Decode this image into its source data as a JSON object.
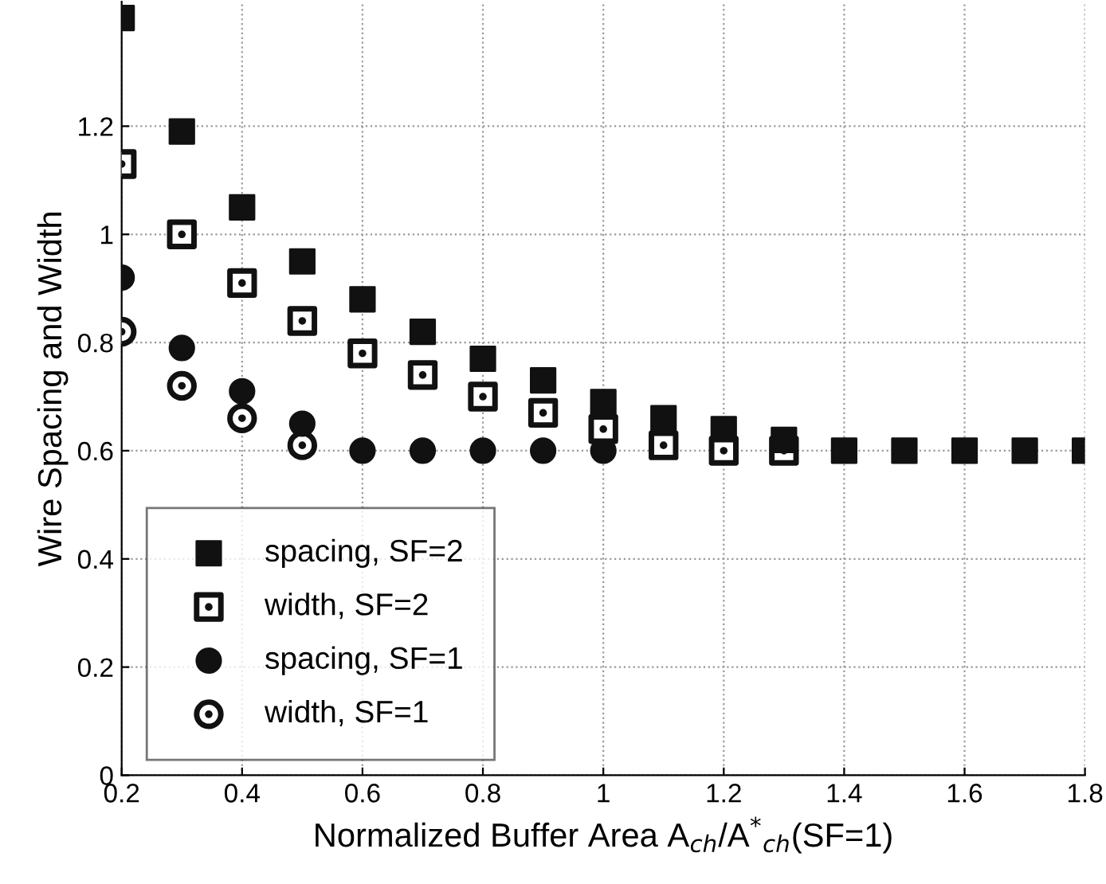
{
  "chart_data": {
    "type": "scatter",
    "xlabel": "Normalized Buffer Area A$_{ch}$/A$^{*}$$_{ch}$(SF=1)",
    "ylabel": "Wire Spacing and Width",
    "series": [
      {
        "name": "spacing, SF=2",
        "color": "#111111",
        "marker": "square",
        "x": [
          0.2,
          0.3,
          0.4,
          0.5,
          0.6,
          0.7,
          0.8,
          0.9,
          1.0,
          1.1,
          1.2,
          1.3,
          1.4,
          1.5,
          1.6,
          1.7,
          1.8
        ],
        "values": [
          1.4,
          1.19,
          1.05,
          0.95,
          0.88,
          0.82,
          0.77,
          0.73,
          0.69,
          0.66,
          0.64,
          0.62,
          0.6,
          0.6,
          0.6,
          0.6,
          0.6
        ]
      },
      {
        "name": "width, SF=2",
        "color": "#ffffff",
        "marker": "square",
        "x": [
          0.2,
          0.3,
          0.4,
          0.5,
          0.6,
          0.7,
          0.8,
          0.9,
          1.0,
          1.1,
          1.2,
          1.3
        ],
        "values": [
          1.13,
          1.0,
          0.91,
          0.84,
          0.78,
          0.74,
          0.7,
          0.67,
          0.64,
          0.61,
          0.6,
          0.6
        ]
      },
      {
        "name": "spacing, SF=1",
        "color": "#111111",
        "marker": "circle",
        "x": [
          0.2,
          0.3,
          0.4,
          0.5,
          0.6,
          0.7,
          0.8,
          0.9,
          1.0
        ],
        "values": [
          0.92,
          0.79,
          0.71,
          0.65,
          0.6,
          0.6,
          0.6,
          0.6,
          0.6
        ]
      },
      {
        "name": "width, SF=1",
        "color": "#ffffff",
        "marker": "circle",
        "x": [
          0.2,
          0.3,
          0.4,
          0.5
        ],
        "values": [
          0.82,
          0.72,
          0.66,
          0.61
        ]
      }
    ],
    "xlim": [
      0.2,
      1.8
    ],
    "xticks": [
      0.2,
      0.4,
      0.6,
      0.8,
      1,
      1.2,
      1.4,
      1.6,
      1.8
    ],
    "ylim": [
      0,
      1.43
    ],
    "yticks": [
      0,
      0.2,
      0.4,
      0.6,
      0.8,
      1,
      1.2
    ],
    "grid": true,
    "line_style": "dotted",
    "legend": "bottom left"
  }
}
